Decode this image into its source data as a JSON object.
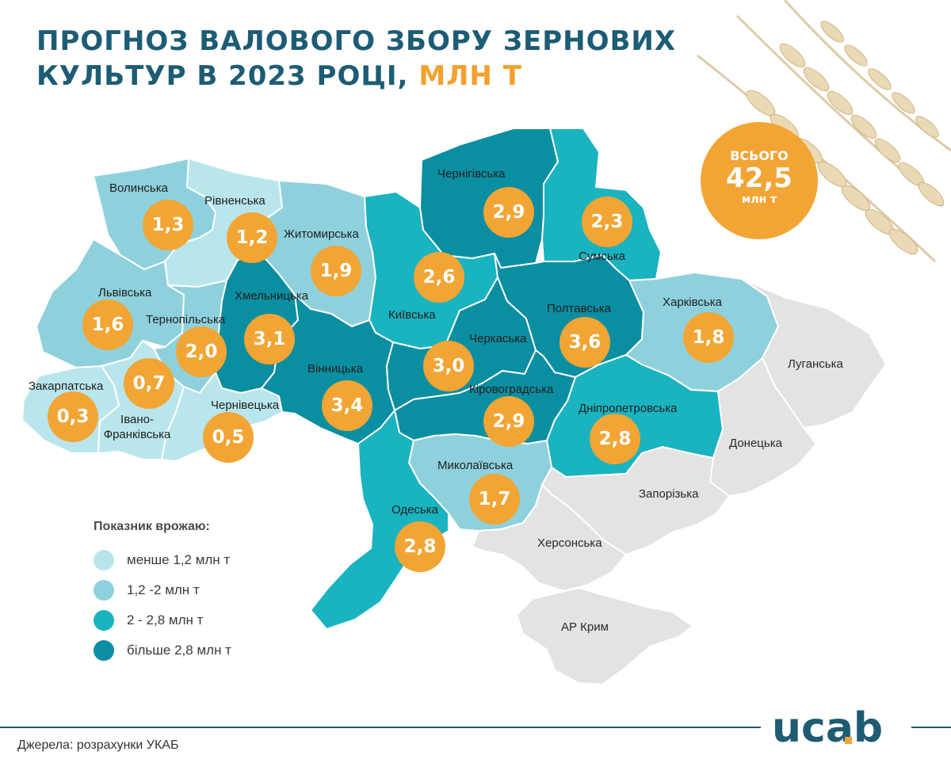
{
  "title": {
    "line1": "Прогноз валового збору зернових",
    "line2": "культур в 2023 році,",
    "unit": "млн т"
  },
  "total": {
    "label": "всього",
    "value": "42,5",
    "unit": "млн т"
  },
  "colors": {
    "level_less_1_2": "#b9e6ec",
    "level_1_2_2": "#8ed1dc",
    "level_2_2_8": "#1ab3c0",
    "level_more_2_8": "#0a8ea1",
    "no_data": "#e3e3e3",
    "bubble": "#f2a534",
    "title": "#1c5c75",
    "accent": "#f2a12e"
  },
  "regions": [
    {
      "id": "volyn",
      "name": "Волинська",
      "value": "1,3",
      "level": "level_1_2_2"
    },
    {
      "id": "rivne",
      "name": "Рівненська",
      "value": "1,2",
      "level": "level_less_1_2"
    },
    {
      "id": "zhytomyr",
      "name": "Житомирська",
      "value": "1,9",
      "level": "level_1_2_2"
    },
    {
      "id": "kyiv",
      "name": "Київська",
      "value": "2,6",
      "level": "level_2_2_8"
    },
    {
      "id": "chernihiv",
      "name": "Чернігівська",
      "value": "2,9",
      "level": "level_more_2_8"
    },
    {
      "id": "sumy",
      "name": "Сумська",
      "value": "2,3",
      "level": "level_2_2_8"
    },
    {
      "id": "lviv",
      "name": "Львівська",
      "value": "1,6",
      "level": "level_1_2_2"
    },
    {
      "id": "ternopil",
      "name": "Тернопільська",
      "value": "2,0",
      "level": "level_1_2_2"
    },
    {
      "id": "khmelnytskyi",
      "name": "Хмельницька",
      "value": "3,1",
      "level": "level_more_2_8"
    },
    {
      "id": "zakarpattia",
      "name": "Закарпатська",
      "value": "0,3",
      "level": "level_less_1_2"
    },
    {
      "id": "ivano_frankivsk",
      "name": "Івано-Франківська",
      "value": "0,7",
      "level": "level_less_1_2"
    },
    {
      "id": "chernivtsi",
      "name": "Чернівецька",
      "value": "0,5",
      "level": "level_less_1_2"
    },
    {
      "id": "vinnytsia",
      "name": "Вінницька",
      "value": "3,4",
      "level": "level_more_2_8"
    },
    {
      "id": "cherkasy",
      "name": "Черкаська",
      "value": "3,0",
      "level": "level_more_2_8"
    },
    {
      "id": "poltava",
      "name": "Полтавська",
      "value": "3,6",
      "level": "level_more_2_8"
    },
    {
      "id": "kharkiv",
      "name": "Харківська",
      "value": "1,8",
      "level": "level_1_2_2"
    },
    {
      "id": "kirovohrad",
      "name": "Кіровоградська",
      "value": "2,9",
      "level": "level_more_2_8"
    },
    {
      "id": "dnipro",
      "name": "Дніпропетровська",
      "value": "2,8",
      "level": "level_2_2_8"
    },
    {
      "id": "mykolaiv",
      "name": "Миколаївська",
      "value": "1,7",
      "level": "level_1_2_2"
    },
    {
      "id": "odesa",
      "name": "Одеська",
      "value": "2,8",
      "level": "level_2_2_8"
    },
    {
      "id": "luhansk",
      "name": "Луганська",
      "value": null,
      "level": "no_data"
    },
    {
      "id": "donetsk",
      "name": "Донецька",
      "value": null,
      "level": "no_data"
    },
    {
      "id": "zaporizhzhia",
      "name": "Запорізька",
      "value": null,
      "level": "no_data"
    },
    {
      "id": "kherson",
      "name": "Херсонська",
      "value": null,
      "level": "no_data"
    },
    {
      "id": "crimea",
      "name": "АР Крим",
      "value": null,
      "level": "no_data"
    }
  ],
  "legend": {
    "title": "Показник врожаю:",
    "items": [
      {
        "label": "менше 1,2 млн т",
        "level": "level_less_1_2"
      },
      {
        "label": "1,2 -2 млн т",
        "level": "level_1_2_2"
      },
      {
        "label": "2 - 2,8 млн т",
        "level": "level_2_2_8"
      },
      {
        "label": "більше 2,8 млн т",
        "level": "level_more_2_8"
      }
    ]
  },
  "source": "Джерела: розрахунки УКАБ",
  "logo": {
    "text": "ucab"
  }
}
